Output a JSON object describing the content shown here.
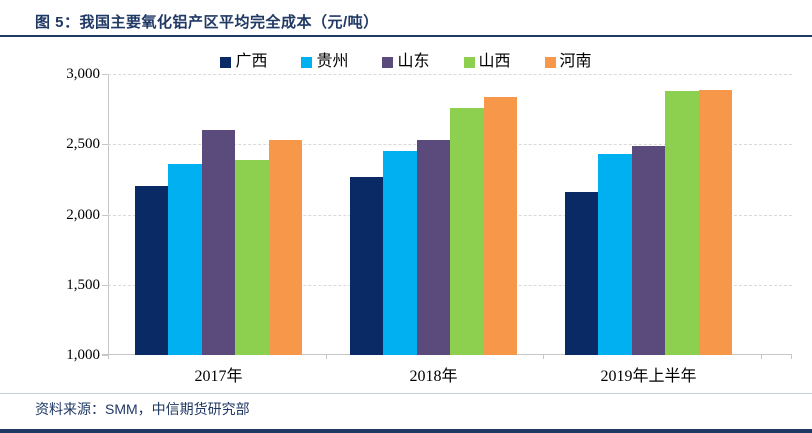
{
  "title": "图 5：我国主要氧化铝产区平均完全成本（元/吨）",
  "source": "资料来源：SMM，中信期货研究部",
  "colors": {
    "accent_navy": "#1f3864",
    "gridline": "#d9d9d9",
    "axis_line": "#c6c6c6",
    "footer_rule_light": "#c3cede"
  },
  "chart_data": {
    "type": "bar",
    "title": "我国主要氧化铝产区平均完全成本（元/吨）",
    "categories": [
      "2017年",
      "2018年",
      "2019年上半年"
    ],
    "series": [
      {
        "name": "广西",
        "color": "#0a2a66",
        "values": [
          2200,
          2270,
          2160
        ]
      },
      {
        "name": "贵州",
        "color": "#00b0f0",
        "values": [
          2360,
          2450,
          2430
        ]
      },
      {
        "name": "山东",
        "color": "#5b4a7c",
        "values": [
          2600,
          2530,
          2490
        ]
      },
      {
        "name": "山西",
        "color": "#8dd04f",
        "values": [
          2390,
          2760,
          2880
        ]
      },
      {
        "name": "河南",
        "color": "#f7974a",
        "values": [
          2530,
          2840,
          2890
        ]
      }
    ],
    "ylim": [
      1000,
      3000
    ],
    "ytick_interval": 500,
    "ytick_labels": [
      "1,000",
      "1,500",
      "2,000",
      "2,500",
      "3,000"
    ],
    "grid": "horizontal dash-dot",
    "legend_position": "top"
  }
}
